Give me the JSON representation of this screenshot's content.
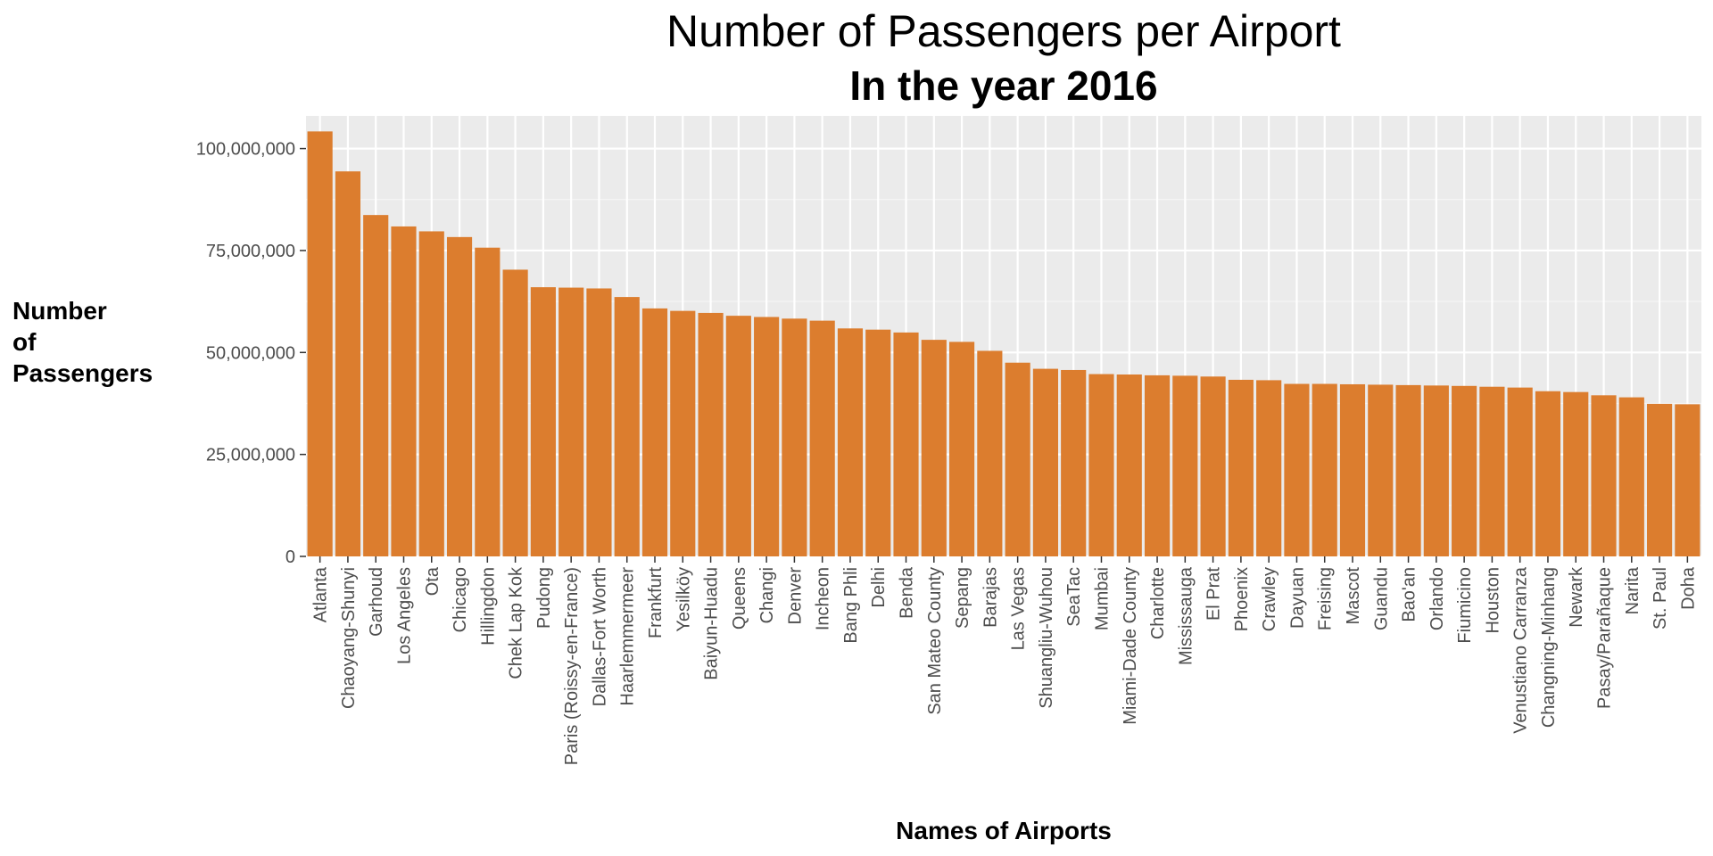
{
  "chart_data": {
    "type": "bar",
    "title": "Number of Passengers per Airport",
    "subtitle": "In the year 2016",
    "xlabel": "Names of Airports",
    "ylabel": [
      "Number",
      "of",
      "Passengers"
    ],
    "ylim": [
      0,
      108000000
    ],
    "yticks": [
      0,
      25000000,
      50000000,
      75000000,
      100000000
    ],
    "ytick_labels": [
      "0",
      "25,000,000",
      "50,000,000",
      "75,000,000",
      "100,000,000"
    ],
    "grid": true,
    "legend": "none",
    "categories": [
      "Atlanta",
      "Chaoyang-Shunyi",
      "Garhoud",
      "Los Angeles",
      "Ota",
      "Chicago",
      "Hillingdon",
      "Chek Lap Kok",
      "Pudong",
      "Paris (Roissy-en-France)",
      "Dallas-Fort Worth",
      "Haarlemmermeer",
      "Frankfurt",
      "Yesilköy",
      "Baiyun-Huadu",
      "Queens",
      "Changi",
      "Denver",
      "Incheon",
      "Bang Phli",
      "Delhi",
      "Benda",
      "San Mateo County",
      "Sepang",
      "Barajas",
      "Las Vegas",
      "Shuangliu-Wuhou",
      "SeaTac",
      "Mumbai",
      "Miami-Dade County",
      "Charlotte",
      "Mississauga",
      "El Prat",
      "Phoenix",
      "Crawley",
      "Dayuan",
      "Freising",
      "Mascot",
      "Guandu",
      "Bao'an",
      "Orlando",
      "Fiumicino",
      "Houston",
      "Venustiano Carranza",
      "Changning-Minhang",
      "Newark",
      "Pasay/Parañaque",
      "Narita",
      "St. Paul",
      "Doha"
    ],
    "values": [
      104200000,
      94400000,
      83700000,
      80900000,
      79700000,
      78300000,
      75700000,
      70300000,
      66000000,
      65900000,
      65700000,
      63600000,
      60800000,
      60200000,
      59700000,
      59000000,
      58700000,
      58300000,
      57800000,
      55900000,
      55600000,
      54900000,
      53100000,
      52600000,
      50400000,
      47500000,
      46000000,
      45700000,
      44700000,
      44600000,
      44400000,
      44300000,
      44100000,
      43300000,
      43200000,
      42300000,
      42300000,
      42200000,
      42100000,
      42000000,
      41900000,
      41800000,
      41600000,
      41400000,
      40500000,
      40300000,
      39500000,
      39000000,
      37400000,
      37300000
    ],
    "colors": {
      "bar": "#dc7d2e",
      "panel": "#ebebeb",
      "grid_major": "#ffffff",
      "grid_minor": "#f5f5f5",
      "tick_text": "#4d4d4d",
      "tick_mark": "#333333"
    }
  }
}
